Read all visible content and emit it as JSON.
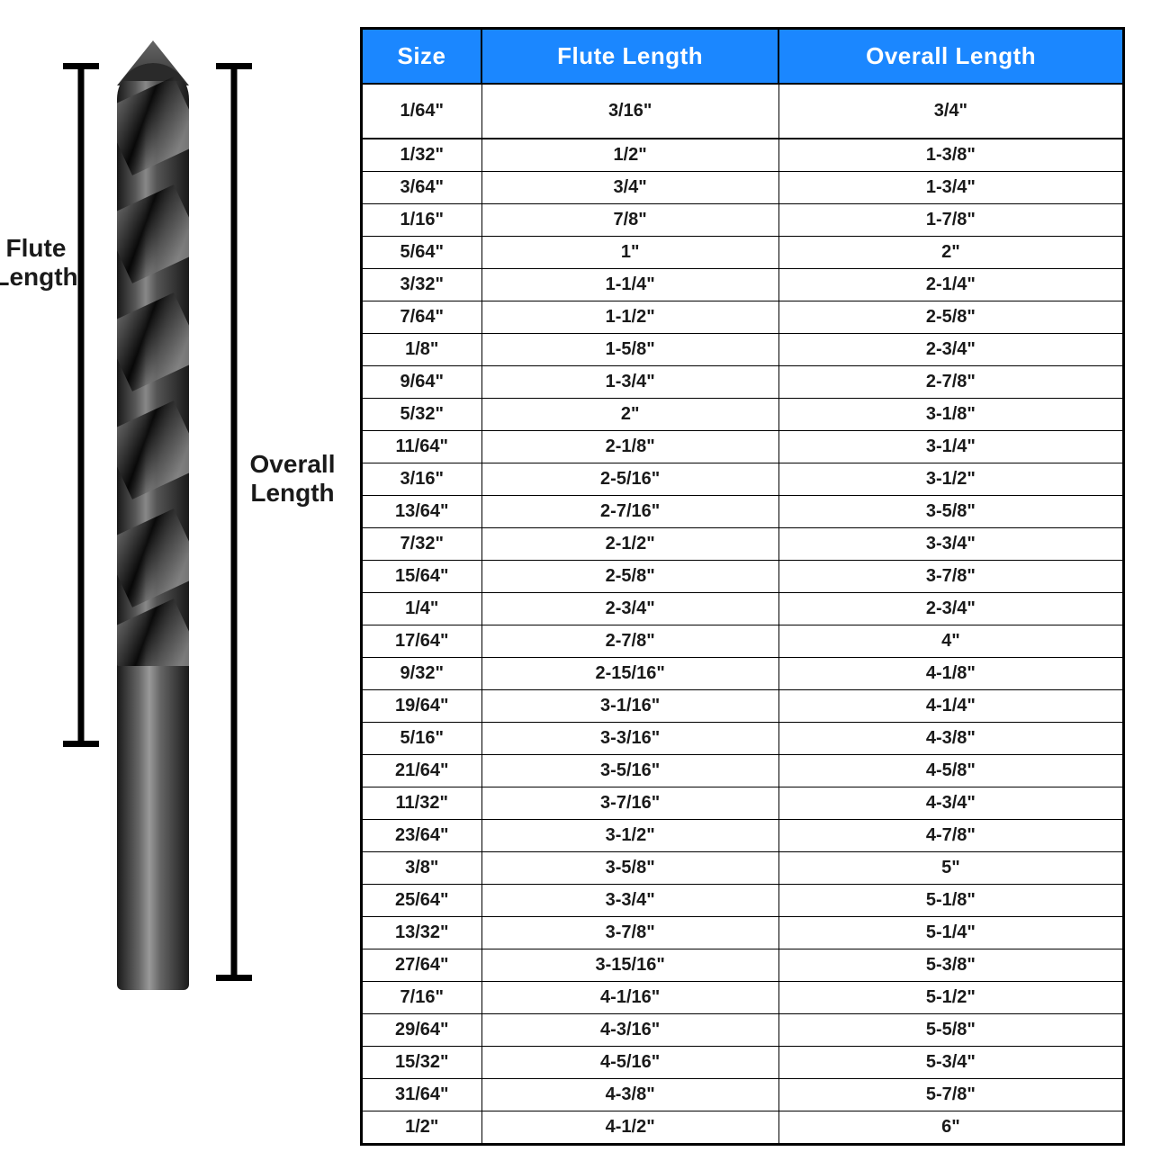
{
  "diagram": {
    "flute_label": "Flute Length",
    "overall_label": "Overall Length"
  },
  "table": {
    "header_bg": "#1b87ff",
    "columns": [
      "Size",
      "Flute Length",
      "Overall Length"
    ],
    "rows": [
      [
        "1/64\"",
        "3/16\"",
        "3/4\""
      ],
      [
        "1/32\"",
        "1/2\"",
        "1-3/8\""
      ],
      [
        "3/64\"",
        "3/4\"",
        "1-3/4\""
      ],
      [
        "1/16\"",
        "7/8\"",
        "1-7/8\""
      ],
      [
        "5/64\"",
        "1\"",
        "2\""
      ],
      [
        "3/32\"",
        "1-1/4\"",
        "2-1/4\""
      ],
      [
        "7/64\"",
        "1-1/2\"",
        "2-5/8\""
      ],
      [
        "1/8\"",
        "1-5/8\"",
        "2-3/4\""
      ],
      [
        "9/64\"",
        "1-3/4\"",
        "2-7/8\""
      ],
      [
        "5/32\"",
        "2\"",
        "3-1/8\""
      ],
      [
        "11/64\"",
        "2-1/8\"",
        "3-1/4\""
      ],
      [
        "3/16\"",
        "2-5/16\"",
        "3-1/2\""
      ],
      [
        "13/64\"",
        "2-7/16\"",
        "3-5/8\""
      ],
      [
        "7/32\"",
        "2-1/2\"",
        "3-3/4\""
      ],
      [
        "15/64\"",
        "2-5/8\"",
        "3-7/8\""
      ],
      [
        "1/4\"",
        "2-3/4\"",
        "2-3/4\""
      ],
      [
        "17/64\"",
        "2-7/8\"",
        "4\""
      ],
      [
        "9/32\"",
        "2-15/16\"",
        "4-1/8\""
      ],
      [
        "19/64\"",
        "3-1/16\"",
        "4-1/4\""
      ],
      [
        "5/16\"",
        "3-3/16\"",
        "4-3/8\""
      ],
      [
        "21/64\"",
        "3-5/16\"",
        "4-5/8\""
      ],
      [
        "11/32\"",
        "3-7/16\"",
        "4-3/4\""
      ],
      [
        "23/64\"",
        "3-1/2\"",
        "4-7/8\""
      ],
      [
        "3/8\"",
        "3-5/8\"",
        "5\""
      ],
      [
        "25/64\"",
        "3-3/4\"",
        "5-1/8\""
      ],
      [
        "13/32\"",
        "3-7/8\"",
        "5-1/4\""
      ],
      [
        "27/64\"",
        "3-15/16\"",
        "5-3/8\""
      ],
      [
        "7/16\"",
        "4-1/16\"",
        "5-1/2\""
      ],
      [
        "29/64\"",
        "4-3/16\"",
        "5-5/8\""
      ],
      [
        "15/32\"",
        "4-5/16\"",
        "5-3/4\""
      ],
      [
        "31/64\"",
        "4-3/8\"",
        "5-7/8\""
      ],
      [
        "1/2\"",
        "4-1/2\"",
        "6\""
      ]
    ]
  }
}
